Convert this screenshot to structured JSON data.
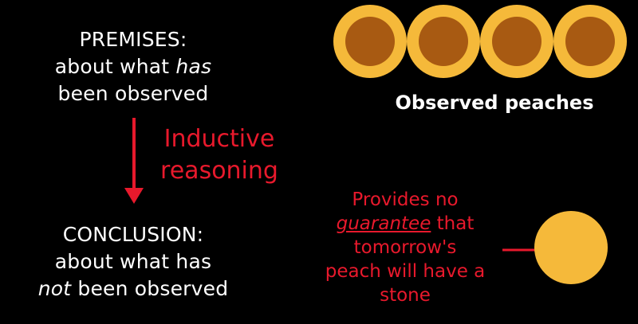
{
  "premises": {
    "lines": [
      "PREMISES:",
      "about what ",
      "has",
      "been observed"
    ]
  },
  "inductive": {
    "line1": "Inductive",
    "line2": "reasoning"
  },
  "conclusion": {
    "line1": "CONCLUSION:",
    "line2": "about what has",
    "line3_italic": "not",
    "line3_rest": " been observed"
  },
  "observed_label": "Observed peaches",
  "guarantee": {
    "line1": "Provides no",
    "line2_underlined": "guarantee",
    "line2_rest": " that",
    "line3": "tomorrow's",
    "line4": "peach will have a",
    "line5": "stone"
  },
  "colors": {
    "background": "#000000",
    "accent_red": "#e8192c",
    "peach_flesh": "#f5b93a",
    "peach_stone": "#a85a12",
    "text": "#ffffff"
  }
}
